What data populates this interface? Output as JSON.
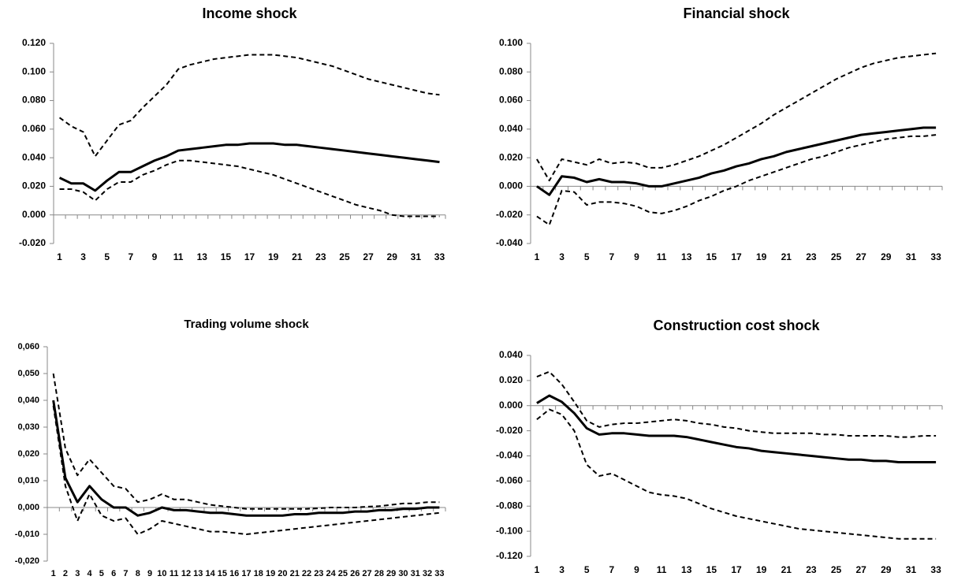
{
  "chart_data": [
    {
      "type": "line",
      "title": "Income shock",
      "categories": [
        1,
        null,
        3,
        null,
        5,
        null,
        7,
        null,
        9,
        null,
        11,
        null,
        13,
        null,
        15,
        null,
        17,
        null,
        19,
        null,
        21,
        null,
        23,
        null,
        25,
        null,
        27,
        null,
        29,
        null,
        31,
        null,
        33
      ],
      "ylim": [
        -0.02,
        0.12
      ],
      "yticks": [
        {
          "value": -0.02,
          "label": "-0.020"
        },
        {
          "value": 0,
          "label": "0.000"
        },
        {
          "value": 0.02,
          "label": "0.020"
        },
        {
          "value": 0.04,
          "label": "0.040"
        },
        {
          "value": 0.06,
          "label": "0.060"
        },
        {
          "value": 0.08,
          "label": "0.080"
        },
        {
          "value": 0.1,
          "label": "0.100"
        },
        {
          "value": 0.12,
          "label": "0.120"
        }
      ],
      "series": [
        {
          "color": "#000000",
          "dashed": true,
          "values": [
            0.068,
            0.062,
            0.058,
            0.041,
            0.052,
            0.063,
            0.066,
            0.075,
            0.083,
            0.091,
            0.102,
            0.105,
            0.107,
            0.109,
            0.11,
            0.111,
            0.112,
            0.112,
            0.112,
            0.111,
            0.11,
            0.108,
            0.106,
            0.104,
            0.101,
            0.098,
            0.095,
            0.093,
            0.091,
            0.089,
            0.087,
            0.085,
            0.084
          ]
        },
        {
          "color": "#000000",
          "dashed": false,
          "values": [
            0.026,
            0.022,
            0.022,
            0.017,
            0.024,
            0.03,
            0.03,
            0.034,
            0.038,
            0.041,
            0.045,
            0.046,
            0.047,
            0.048,
            0.049,
            0.049,
            0.05,
            0.05,
            0.05,
            0.049,
            0.049,
            0.048,
            0.047,
            0.046,
            0.045,
            0.044,
            0.043,
            0.042,
            0.041,
            0.04,
            0.039,
            0.038,
            0.037
          ]
        },
        {
          "color": "#000000",
          "dashed": true,
          "values": [
            0.018,
            0.018,
            0.016,
            0.01,
            0.018,
            0.023,
            0.023,
            0.028,
            0.031,
            0.035,
            0.038,
            0.038,
            0.037,
            0.036,
            0.035,
            0.034,
            0.032,
            0.03,
            0.028,
            0.025,
            0.022,
            0.019,
            0.016,
            0.013,
            0.01,
            0.007,
            0.005,
            0.003,
            0.0,
            -0.001,
            -0.001,
            -0.001,
            -0.001
          ]
        }
      ]
    },
    {
      "type": "line",
      "title": "Financial shock",
      "categories": [
        1,
        null,
        3,
        null,
        5,
        null,
        7,
        null,
        9,
        null,
        11,
        null,
        13,
        null,
        15,
        null,
        17,
        null,
        19,
        null,
        21,
        null,
        23,
        null,
        25,
        null,
        27,
        null,
        29,
        null,
        31,
        null,
        33
      ],
      "ylim": [
        -0.04,
        0.1
      ],
      "yticks": [
        {
          "value": -0.04,
          "label": "-0.040"
        },
        {
          "value": -0.02,
          "label": "-0.020"
        },
        {
          "value": 0,
          "label": "0.000"
        },
        {
          "value": 0.02,
          "label": "0.020"
        },
        {
          "value": 0.04,
          "label": "0.040"
        },
        {
          "value": 0.06,
          "label": "0.060"
        },
        {
          "value": 0.08,
          "label": "0.080"
        },
        {
          "value": 0.1,
          "label": "0.100"
        }
      ],
      "series": [
        {
          "color": "#000000",
          "dashed": true,
          "values": [
            0.019,
            0.004,
            0.019,
            0.017,
            0.015,
            0.019,
            0.016,
            0.017,
            0.016,
            0.013,
            0.013,
            0.015,
            0.018,
            0.021,
            0.025,
            0.029,
            0.034,
            0.039,
            0.044,
            0.05,
            0.055,
            0.06,
            0.065,
            0.07,
            0.075,
            0.079,
            0.083,
            0.086,
            0.088,
            0.09,
            0.091,
            0.092,
            0.093
          ]
        },
        {
          "color": "#000000",
          "dashed": false,
          "values": [
            0.0,
            -0.006,
            0.007,
            0.006,
            0.003,
            0.005,
            0.003,
            0.003,
            0.002,
            0.0,
            0.0,
            0.002,
            0.004,
            0.006,
            0.009,
            0.011,
            0.014,
            0.016,
            0.019,
            0.021,
            0.024,
            0.026,
            0.028,
            0.03,
            0.032,
            0.034,
            0.036,
            0.037,
            0.038,
            0.039,
            0.04,
            0.041,
            0.041
          ]
        },
        {
          "color": "#000000",
          "dashed": true,
          "values": [
            -0.021,
            -0.027,
            -0.003,
            -0.004,
            -0.013,
            -0.011,
            -0.011,
            -0.012,
            -0.014,
            -0.018,
            -0.019,
            -0.017,
            -0.014,
            -0.01,
            -0.007,
            -0.003,
            0.0,
            0.004,
            0.007,
            0.01,
            0.013,
            0.016,
            0.019,
            0.021,
            0.024,
            0.027,
            0.029,
            0.031,
            0.033,
            0.034,
            0.035,
            0.035,
            0.036
          ]
        }
      ]
    },
    {
      "type": "line",
      "title": "Trading volume shock",
      "categories": [
        1,
        2,
        3,
        4,
        5,
        6,
        7,
        8,
        9,
        10,
        11,
        12,
        13,
        14,
        15,
        16,
        17,
        18,
        19,
        20,
        21,
        22,
        23,
        24,
        25,
        26,
        27,
        28,
        29,
        30,
        31,
        32,
        33
      ],
      "ylim": [
        -0.02,
        0.06
      ],
      "yticks": [
        {
          "value": -0.02,
          "label": "-0,020"
        },
        {
          "value": -0.01,
          "label": "-0,010"
        },
        {
          "value": 0,
          "label": "0,000"
        },
        {
          "value": 0.01,
          "label": "0,010"
        },
        {
          "value": 0.02,
          "label": "0,020"
        },
        {
          "value": 0.03,
          "label": "0,030"
        },
        {
          "value": 0.04,
          "label": "0,040"
        },
        {
          "value": 0.05,
          "label": "0,050"
        },
        {
          "value": 0.06,
          "label": "0,060"
        }
      ],
      "series": [
        {
          "color": "#000000",
          "dashed": true,
          "values": [
            0.05,
            0.022,
            0.012,
            0.018,
            0.013,
            0.008,
            0.007,
            0.002,
            0.003,
            0.005,
            0.003,
            0.003,
            0.002,
            0.001,
            0.0005,
            0.0,
            -0.0005,
            -0.0005,
            -0.0005,
            -0.0005,
            -0.0005,
            -0.0005,
            -0.0003,
            0.0,
            0.0,
            0.0,
            0.0003,
            0.0005,
            0.001,
            0.0015,
            0.0015,
            0.002,
            0.002
          ]
        },
        {
          "color": "#000000",
          "dashed": false,
          "values": [
            0.04,
            0.011,
            0.002,
            0.008,
            0.003,
            0.0,
            0.0,
            -0.003,
            -0.002,
            0.0,
            -0.001,
            -0.001,
            -0.0015,
            -0.002,
            -0.002,
            -0.0025,
            -0.003,
            -0.003,
            -0.003,
            -0.003,
            -0.0025,
            -0.0025,
            -0.002,
            -0.002,
            -0.002,
            -0.0015,
            -0.0015,
            -0.001,
            -0.001,
            -0.0005,
            -0.0005,
            0.0,
            0.0
          ]
        },
        {
          "color": "#000000",
          "dashed": true,
          "values": [
            0.038,
            0.008,
            -0.005,
            0.005,
            -0.003,
            -0.005,
            -0.004,
            -0.01,
            -0.008,
            -0.005,
            -0.006,
            -0.007,
            -0.008,
            -0.009,
            -0.009,
            -0.0095,
            -0.01,
            -0.0095,
            -0.009,
            -0.0085,
            -0.008,
            -0.0075,
            -0.007,
            -0.0065,
            -0.006,
            -0.0055,
            -0.005,
            -0.0045,
            -0.004,
            -0.0035,
            -0.003,
            -0.0025,
            -0.002
          ]
        }
      ]
    },
    {
      "type": "line",
      "title": "Construction cost  shock",
      "categories": [
        1,
        null,
        3,
        null,
        5,
        null,
        7,
        null,
        9,
        null,
        11,
        null,
        13,
        null,
        15,
        null,
        17,
        null,
        19,
        null,
        21,
        null,
        23,
        null,
        25,
        null,
        27,
        null,
        29,
        null,
        31,
        null,
        33
      ],
      "ylim": [
        -0.12,
        0.04
      ],
      "yticks": [
        {
          "value": -0.12,
          "label": "-0.120"
        },
        {
          "value": -0.1,
          "label": "-0.100"
        },
        {
          "value": -0.08,
          "label": "-0.080"
        },
        {
          "value": -0.06,
          "label": "-0.060"
        },
        {
          "value": -0.04,
          "label": "-0.040"
        },
        {
          "value": -0.02,
          "label": "-0.020"
        },
        {
          "value": 0,
          "label": "0.000"
        },
        {
          "value": 0.02,
          "label": "0.020"
        },
        {
          "value": 0.04,
          "label": "0.040"
        }
      ],
      "series": [
        {
          "color": "#000000",
          "dashed": true,
          "values": [
            0.023,
            0.027,
            0.017,
            0.003,
            -0.012,
            -0.017,
            -0.015,
            -0.014,
            -0.014,
            -0.013,
            -0.012,
            -0.011,
            -0.012,
            -0.014,
            -0.015,
            -0.017,
            -0.018,
            -0.02,
            -0.021,
            -0.022,
            -0.022,
            -0.022,
            -0.022,
            -0.023,
            -0.023,
            -0.024,
            -0.024,
            -0.024,
            -0.024,
            -0.025,
            -0.025,
            -0.024,
            -0.024
          ]
        },
        {
          "color": "#000000",
          "dashed": false,
          "values": [
            0.002,
            0.008,
            0.003,
            -0.006,
            -0.018,
            -0.023,
            -0.022,
            -0.022,
            -0.023,
            -0.024,
            -0.024,
            -0.024,
            -0.025,
            -0.027,
            -0.029,
            -0.031,
            -0.033,
            -0.034,
            -0.036,
            -0.037,
            -0.038,
            -0.039,
            -0.04,
            -0.041,
            -0.042,
            -0.043,
            -0.043,
            -0.044,
            -0.044,
            -0.045,
            -0.045,
            -0.045,
            -0.045
          ]
        },
        {
          "color": "#000000",
          "dashed": true,
          "values": [
            -0.011,
            -0.003,
            -0.007,
            -0.02,
            -0.047,
            -0.056,
            -0.054,
            -0.059,
            -0.064,
            -0.069,
            -0.071,
            -0.072,
            -0.074,
            -0.078,
            -0.082,
            -0.085,
            -0.088,
            -0.09,
            -0.092,
            -0.094,
            -0.096,
            -0.098,
            -0.099,
            -0.1,
            -0.101,
            -0.102,
            -0.103,
            -0.104,
            -0.105,
            -0.106,
            -0.106,
            -0.106,
            -0.106
          ]
        }
      ]
    }
  ]
}
